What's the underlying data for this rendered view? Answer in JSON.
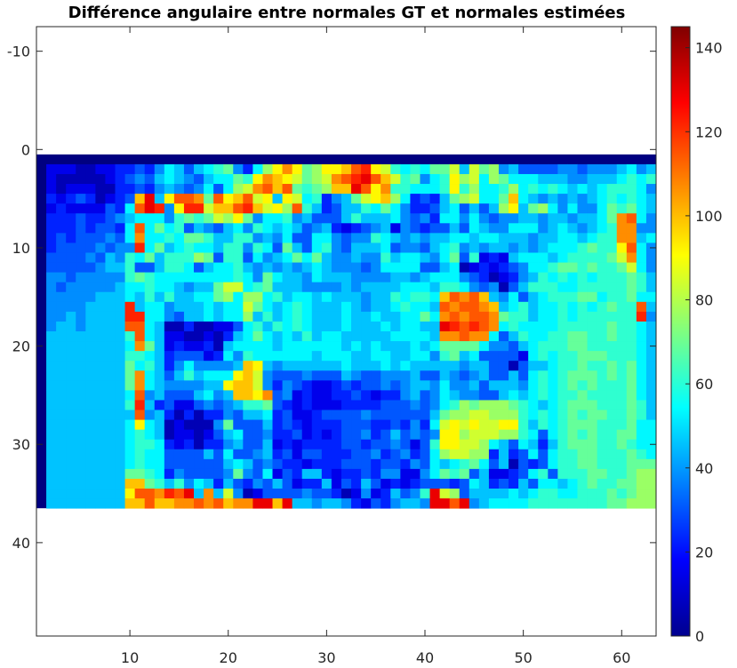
{
  "chart_data": {
    "type": "heatmap",
    "title": "Différence angulaire entre normales GT et normales estimées",
    "xlabel": "",
    "ylabel": "",
    "xlim": [
      0.5,
      63.5
    ],
    "ylim": [
      -12.5,
      49.5
    ],
    "x_ticks": [
      10,
      20,
      30,
      40,
      50,
      60
    ],
    "y_ticks": [
      -10,
      0,
      10,
      20,
      30,
      40
    ],
    "y_reversed": true,
    "grid": false,
    "colormap": "jet",
    "clim": [
      0,
      145
    ],
    "colorbar": {
      "position": "right",
      "ticks": [
        0,
        20,
        40,
        60,
        80,
        100,
        120,
        140
      ]
    },
    "image_extent": {
      "cols": 63,
      "rows": 36,
      "x_start": 1,
      "y_start": 1
    },
    "border": {
      "value": 0,
      "width_cells": 1
    },
    "grid_cells": 62,
    "rows": [
      "CCCBBCCDDEDFHGEGHIJFDHKMOMJKMMNPQMLIHIHJJLGLJKFGEEEEFFEFFFGHFG",
      "CBBBBBCDEFEGHGFEGHHJIMONMLJKLOPQRPNLIJFHIMKLHKJHHHGGGFFGGGHIHI",
      "CBCCCBBDDEDFGFEFHEHKLOPNPJIJKNNRPMOIIHHHIMIKHHIKHIHIHGHGHIIIHF",
      "DCDEDBCDENRGMPPOJPMNPLMGMLHIDFGJLMNKHDEDGJKLHHJNHGFGFGFGHIHIHG",
      "CDCCCCEDHPRQFMQQLNNPQNLMKPIGDEGGIHJHFDDEGHEGEGKMGJKHFHFFHJIJHG",
      "DDDEDDEFGHHHFIJIJLKMJFHHIFGEEEGIGGGHFEFDHHFHFEFFGGFGGFGGHJOPHF",
      "DDDEDEEDHPHJHIEGFEGHFIHGHGEFGDCDEFGCFEDEEGEHGFFHHHFGHGFGHIOOFF",
      "DEDEEEFEHOHHIHJJIGGIIFGFHEEHHFEFFIHGFGFGGHHGHHGGGFGGHHGHIIOOGH",
      "DEEEEFEFFQHJGHIHHGIIFIHEJGEHIFEGGGHEFFEGHIFGFGGFGFGHHHIJIIMPHF",
      "EEEEFEGFIHJGIIIKJEIIEHFGHJHJGFFGFFIGHHGFHJEICDCGHHHGHIIIIJLOHF",
      "EEEEEFGGIEEGIIHEGHHIGFGFGFGHGFFFEFHHHHEEGHBCDCDEFHHIJJIJIIJLHF",
      "FFEFFFFFIJIHHHHHHHHIHFJHGGFHGGGFFFFGGFGHHHFEDBCDFGIHIHIHIIIJIG",
      "FEFFFFFGHHIHHGFGGJLLHIJGGGFFFFGFGGGGHHHGIIHFEFBEGIIIHHIIIIIJIG",
      "FFFFFGGGHGIGIGGHHJKHKKHIGHHGHGGGFGGIHIIHNPOPNGFHEGHIIIJJHIIJHH",
      "FFFFGGGGQGHHFGGGHGHHLJHGHIHGGGHGFGGHIHHGPOPPONGHIGHHIHIHIJIIPG",
      "FFGFGGGGQQHHFEGGHGHHKGIGHIHGGGHGGHGGHHJHOPOPPOJIIGHHIHIIIIIIQF",
      "FGGFGGGGPPHGBBDBBCCEHIGIHIHGGGHGGGHGHHGGRQPQPOHIHHHHIIIIIJIIHG",
      "GGGGGGGGIPHGCCBBCBDGHJHGHGIGHHGGGGGHHHHGOOPOOHEGIHHIIJJIIJIIHG",
      "GGGGGGGGHOJGCDCCDBGHHHHGHHHHHHGHGHGGGHGHJJJJHFFEGHIIIJJIIIIIHG",
      "GGGGGGGGIIHGDEEECDHFIHHHHHHGHHHGGHHGGHHFIJGHEEEECHIHIIJJJIIIHG",
      "GGGGGGGGJHIGDFHFFFFGNMGFGGGGGGHGGGHGHGGGGGFGGEEBEGGHIIJIIJIJHG",
      "GGGGGGGGJOHGEGIGHHHMNLFEEEFEEEGFEEFFFGEEGFEFGEEGEHIHIJJJIJIJHG",
      "GGGGGGGGJOHGFFFFGGMNNLFDFEDCCDEDEEFEFGGFHFFGEGGGFHIHIJIJIIIJHG",
      "GGGGGGGGHPFGEEEGHFGNNMOEFCDCCDDEDCDDFGEFHGFFEEGHGHIHIIJIIIIJHG",
      "GGGGGGGGIQGDECCEFEFGIIJEDCDCCCDDDDEEEFEFHIKJKKKJIHGHIJJJIIIJIG",
      "GGGGGGGGGPFGDBDBDDFEGGHDECCDEEEEFEEEEEEGJKKLLKKKIHIHIJIJJIIJIG",
      "GGGGGGGGHMHGBCBBBFJEEEGDEDCDDDEEEDDEDFDHLMLMLLMMIGIHIJJJIIIJHH",
      "GGGGGGGGHIHGBCCBCEGHEEFDDECDCDEEFDEGEFEFMMKLLLKKIHEHIJIJIIJJHH",
      "GGGGGGGGHIIHDCDBDDFGEEGCDCDDDDEEDEEFECEIMMLLKHGEHGDGIJJJIIJIHH",
      "GGGGGGGGHIHHEEEEGEHEEFGDECEEDDDEEFDEFDEHKLLKKDGDEHEHIIJJIIIJIH",
      "GGGGGGGGHIHHEEEEEEGHGEFEDDCDDDEEEDEEDFEHGHIJHEGBEDEHIIJJIIIJJJ",
      "GGGGGGGGJJIHDFEEEEFJFEHCEDGGDCDDEDFFCCFHJIJEGCCDEHIEIIIJJIIJKK",
      "GGGGGGGGNNJIGIFHGDGEDFEGECDDGCEDGECDCDEEEDEHGDEDGEHHGHIJIIJJKK",
      "GGGGGGGGMPPOQPRGOGLFBCEEEEFEEDBCFCDGEFIRLKEGGGGHGHIIHHIIIJIJKK",
      "GGGGGGGGNNPNNOOPOPNOORRNRGGFGGFDCEDFGGFRRPRFGHHHHIIIIIIIIJJKKK"
    ],
    "row_encoding": "each character A..T maps linearly to 0..145 (A=0, step ~7.6)"
  }
}
